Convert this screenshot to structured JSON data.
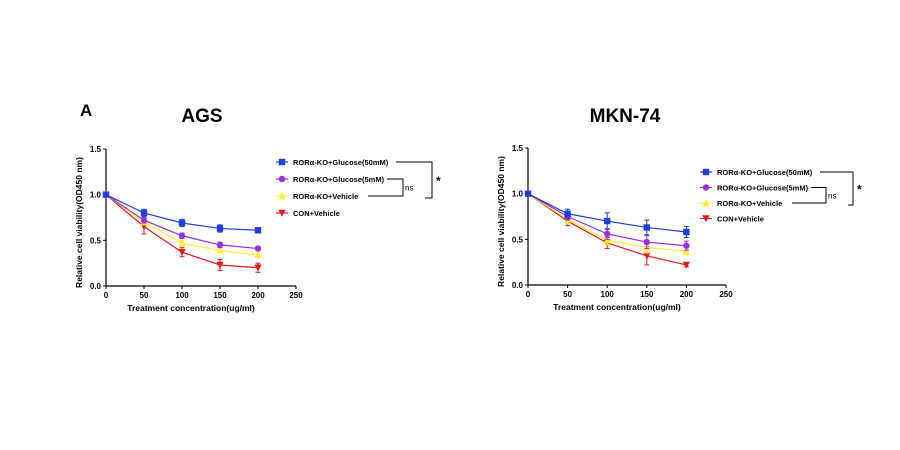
{
  "panel_label": "A",
  "chart_data": [
    {
      "type": "line",
      "title": "AGS",
      "xlabel": "Treatment concentration(ug/ml)",
      "ylabel": "Relative cell viability(OD450 nm)",
      "xlim": [
        0,
        250
      ],
      "ylim": [
        0,
        1.5
      ],
      "xticks": [
        "0",
        "50",
        "100",
        "150",
        "200",
        "250"
      ],
      "yticks": [
        "0.0",
        "0.5",
        "1.0",
        "1.5"
      ],
      "x": [
        0,
        50,
        100,
        150,
        200
      ],
      "series": [
        {
          "name": "RORα-KO+Glucose(50mM)",
          "color": "#1f3fd6",
          "marker": "square",
          "values": [
            1.0,
            0.8,
            0.69,
            0.63,
            0.61
          ],
          "errors": [
            0,
            0.04,
            0.04,
            0.04,
            0.02
          ]
        },
        {
          "name": "RORα-KO+Glucose(5mM)",
          "color": "#9b30d9",
          "marker": "circle",
          "values": [
            1.0,
            0.72,
            0.55,
            0.45,
            0.41
          ],
          "errors": [
            0,
            0.03,
            0.03,
            0.03,
            0.02
          ]
        },
        {
          "name": "RORα-KO+Vehicle",
          "color": "#ffee33",
          "marker": "triangle-up",
          "values": [
            1.0,
            0.7,
            0.47,
            0.39,
            0.34
          ],
          "errors": [
            0,
            0.03,
            0.03,
            0.03,
            0.02
          ]
        },
        {
          "name": "CON+Vehicle",
          "color": "#e41a1c",
          "marker": "triangle-down",
          "values": [
            1.0,
            0.65,
            0.37,
            0.23,
            0.2
          ],
          "errors": [
            0,
            0.08,
            0.05,
            0.06,
            0.05
          ]
        }
      ],
      "significance": {
        "inner": "ns",
        "outer": "*"
      }
    },
    {
      "type": "line",
      "title": "MKN-74",
      "xlabel": "Treatment concentration(ug/ml)",
      "ylabel": "Relative cell viability(OD450 nm)",
      "xlim": [
        0,
        250
      ],
      "ylim": [
        0,
        1.5
      ],
      "xticks": [
        "0",
        "50",
        "100",
        "150",
        "200",
        "250"
      ],
      "yticks": [
        "0.0",
        "0.5",
        "1.0",
        "1.5"
      ],
      "x": [
        0,
        50,
        100,
        150,
        200
      ],
      "series": [
        {
          "name": "RORα-KO+Glucose(50mM)",
          "color": "#1f3fd6",
          "marker": "square",
          "values": [
            1.0,
            0.78,
            0.7,
            0.63,
            0.58
          ],
          "errors": [
            0,
            0.05,
            0.09,
            0.08,
            0.06
          ]
        },
        {
          "name": "RORα-KO+Glucose(5mM)",
          "color": "#9b30d9",
          "marker": "circle",
          "values": [
            1.0,
            0.75,
            0.56,
            0.47,
            0.43
          ],
          "errors": [
            0,
            0.04,
            0.06,
            0.07,
            0.05
          ]
        },
        {
          "name": "RORα-KO+Vehicle",
          "color": "#ffee33",
          "marker": "triangle-up",
          "values": [
            1.0,
            0.72,
            0.49,
            0.41,
            0.37
          ],
          "errors": [
            0,
            0.05,
            0.05,
            0.06,
            0.04
          ]
        },
        {
          "name": "CON+Vehicle",
          "color": "#e41a1c",
          "marker": "triangle-down",
          "values": [
            1.0,
            0.7,
            0.46,
            0.32,
            0.22
          ],
          "errors": [
            0,
            0.05,
            0.06,
            0.1,
            0.02
          ]
        }
      ],
      "significance": {
        "inner": "ns",
        "outer": "*"
      }
    }
  ]
}
